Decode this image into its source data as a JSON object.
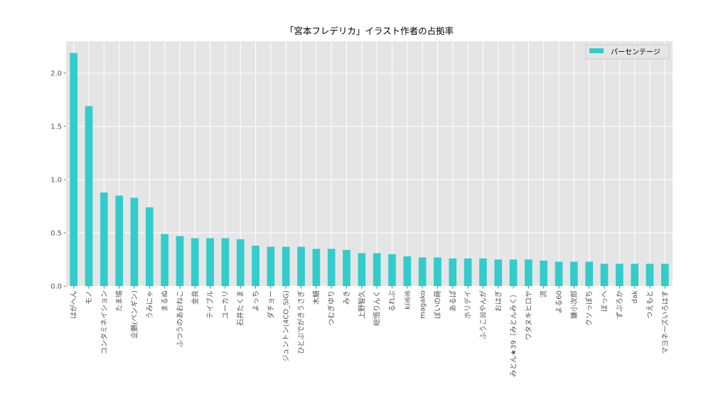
{
  "chart_data": {
    "type": "bar",
    "title": "「宮本フレデリカ」イラスト作者の占拠率",
    "xlabel": "",
    "ylabel": "",
    "ylim": [
      0,
      2.3
    ],
    "yticks": [
      "0.0",
      "0.5",
      "1.0",
      "1.5",
      "2.0"
    ],
    "grid": true,
    "legend_position": "top-right",
    "bar_color": "#33cccc",
    "background_color": "#e5e5e5",
    "categories": [
      "はがへん",
      "モノ",
      "コンタミネイション",
      "たま鳩",
      "企鵝(ペンギン)",
      "うみにゃ",
      "まるぬ",
      "ふつうのあおねこ",
      "金良",
      "テイブル",
      "ユーカリ",
      "石井たくま",
      "よっち",
      "ダチョー",
      "ジュントン(4CO_SIG)",
      "ひとぷでがきうさぎ",
      "木鯖",
      "つむぎゆり",
      "みき",
      "上野智久",
      "総悟りんく",
      "るれぷ",
      "kii6i6",
      "magako",
      "ぽいの蒔",
      "あるぱ",
      "ホリデイ",
      "ふうこ☒やんが",
      "おはぎ",
      "みとん★39（みとんみく）",
      "ワタヌキヒロヤ",
      "流",
      "よる60",
      "鎌小次郎",
      "クソっぽち",
      "ぼっへ",
      "ずぶろか",
      "dak",
      "つえもと",
      "マヨネーズいろはす"
    ],
    "series": [
      {
        "name": "パーセンテージ",
        "values": [
          2.19,
          1.69,
          0.88,
          0.85,
          0.83,
          0.74,
          0.49,
          0.47,
          0.45,
          0.45,
          0.45,
          0.44,
          0.38,
          0.37,
          0.37,
          0.37,
          0.35,
          0.35,
          0.34,
          0.31,
          0.31,
          0.3,
          0.28,
          0.27,
          0.27,
          0.26,
          0.26,
          0.26,
          0.25,
          0.25,
          0.25,
          0.24,
          0.23,
          0.23,
          0.23,
          0.21,
          0.21,
          0.21,
          0.21,
          0.21
        ]
      }
    ]
  }
}
